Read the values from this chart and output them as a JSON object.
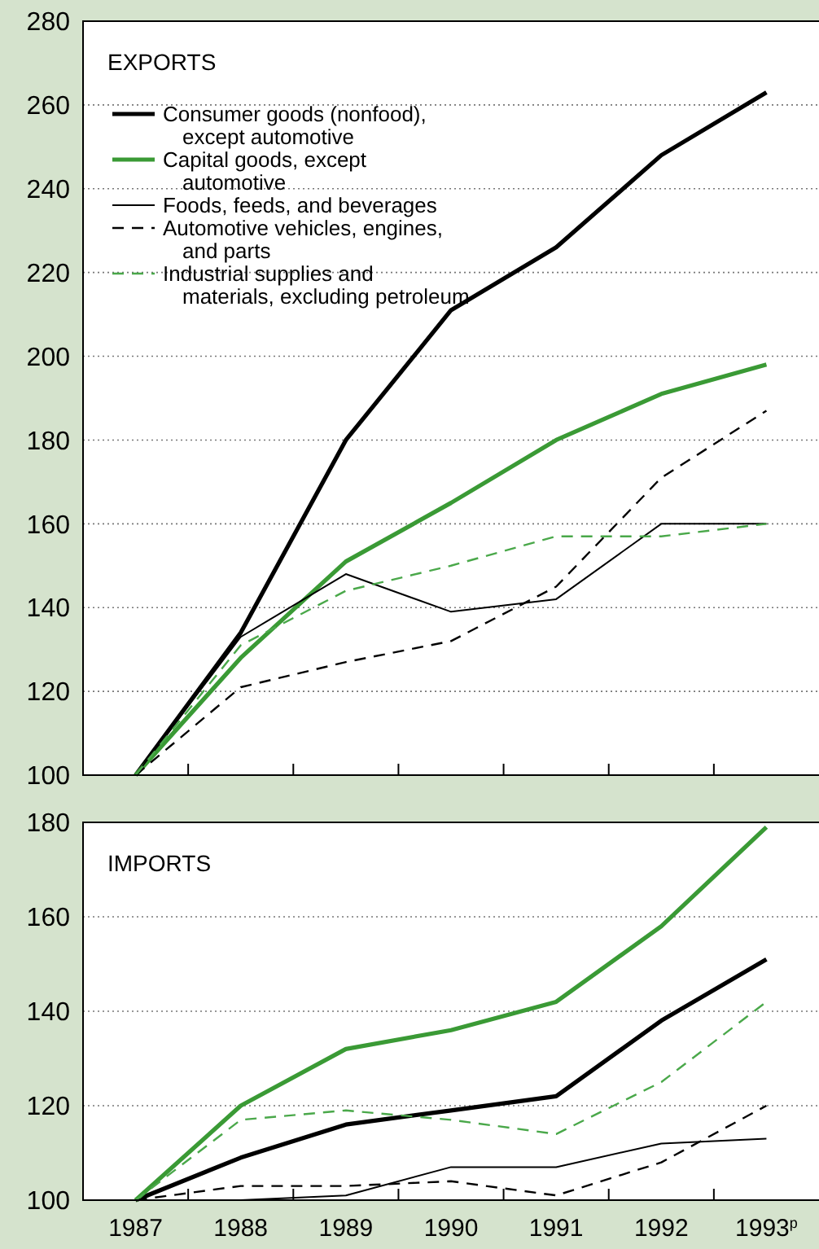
{
  "chart_data": [
    {
      "type": "line",
      "title": "EXPORTS",
      "x": [
        1987,
        1988,
        1989,
        1990,
        1991,
        1992,
        1993
      ],
      "xlim": [
        1986.5,
        1993.5
      ],
      "xticks": [
        {
          "value": 1987.5,
          "label": null
        },
        {
          "value": 1988.5,
          "label": null
        },
        {
          "value": 1989.5,
          "label": null
        },
        {
          "value": 1990.5,
          "label": null
        },
        {
          "value": 1991.5,
          "label": null
        },
        {
          "value": 1992.5,
          "label": null
        }
      ],
      "ylim": [
        100,
        280
      ],
      "yticks": [
        100,
        120,
        140,
        160,
        180,
        200,
        220,
        240,
        260,
        280
      ],
      "grid": "y",
      "legend": "top left",
      "tick_labels": "y",
      "series": [
        {
          "name": "Consumer goods (nonfood), except automotive",
          "color": "#000000",
          "line_style": "solid",
          "values": [
            100,
            134,
            180,
            211,
            226,
            248,
            263
          ]
        },
        {
          "name": "Capital goods, except automotive",
          "color": "#3a9a35",
          "line_style": "solid",
          "values": [
            100,
            128,
            151,
            165,
            180,
            191,
            198
          ]
        },
        {
          "name": "Foods, feeds, and beverages",
          "color": "#000000",
          "line_style": "solid",
          "values": [
            100,
            133,
            148,
            139,
            142,
            160,
            160
          ]
        },
        {
          "name": "Automotive vehicles, engines, and parts",
          "color": "#000000",
          "line_style": "dashed",
          "values": [
            100,
            121,
            127,
            132,
            145,
            171,
            187
          ]
        },
        {
          "name": "Industrial supplies and materials, excluding petroleum",
          "color": "#4aa84a",
          "line_style": "dashed",
          "values": [
            100,
            131,
            144,
            150,
            157,
            157,
            160
          ]
        }
      ]
    },
    {
      "type": "line",
      "title": "IMPORTS",
      "x": [
        1987,
        1988,
        1989,
        1990,
        1991,
        1992,
        1993
      ],
      "xlim": [
        1986.5,
        1993.5
      ],
      "xticks": [
        {
          "value": 1987,
          "label": "1987"
        },
        {
          "value": 1988,
          "label": "1988"
        },
        {
          "value": 1989,
          "label": "1989"
        },
        {
          "value": 1990,
          "label": "1990"
        },
        {
          "value": 1991,
          "label": "1991"
        },
        {
          "value": 1992,
          "label": "1992"
        },
        {
          "value": 1993,
          "label": "1993$^{p}$"
        },
        {
          "value": 1987.5,
          "label": null
        },
        {
          "value": 1988.5,
          "label": null
        },
        {
          "value": 1989.5,
          "label": null
        },
        {
          "value": 1990.5,
          "label": null
        },
        {
          "value": 1991.5,
          "label": null
        },
        {
          "value": 1992.5,
          "label": null
        }
      ],
      "ylim": [
        100,
        180
      ],
      "yticks": [
        100,
        120,
        140,
        160,
        180
      ],
      "grid": "y",
      "series": [
        {
          "color": "#000000",
          "line_style": "solid",
          "values": [
            100,
            109,
            116,
            119,
            122,
            138,
            151
          ]
        },
        {
          "color": "#3a9a35",
          "line_style": "solid",
          "values": [
            100,
            120,
            132,
            136,
            142,
            158,
            179
          ]
        },
        {
          "color": "#000000",
          "line_style": "solid",
          "values": [
            100,
            100,
            101,
            107,
            107,
            112,
            113
          ]
        },
        {
          "color": "#000000",
          "line_style": "dashed",
          "values": [
            100,
            103,
            103,
            104,
            101,
            108,
            120
          ]
        },
        {
          "color": "#4aa84a",
          "line_style": "dashed",
          "values": [
            100,
            117,
            119,
            117,
            114,
            125,
            142
          ]
        }
      ]
    }
  ]
}
